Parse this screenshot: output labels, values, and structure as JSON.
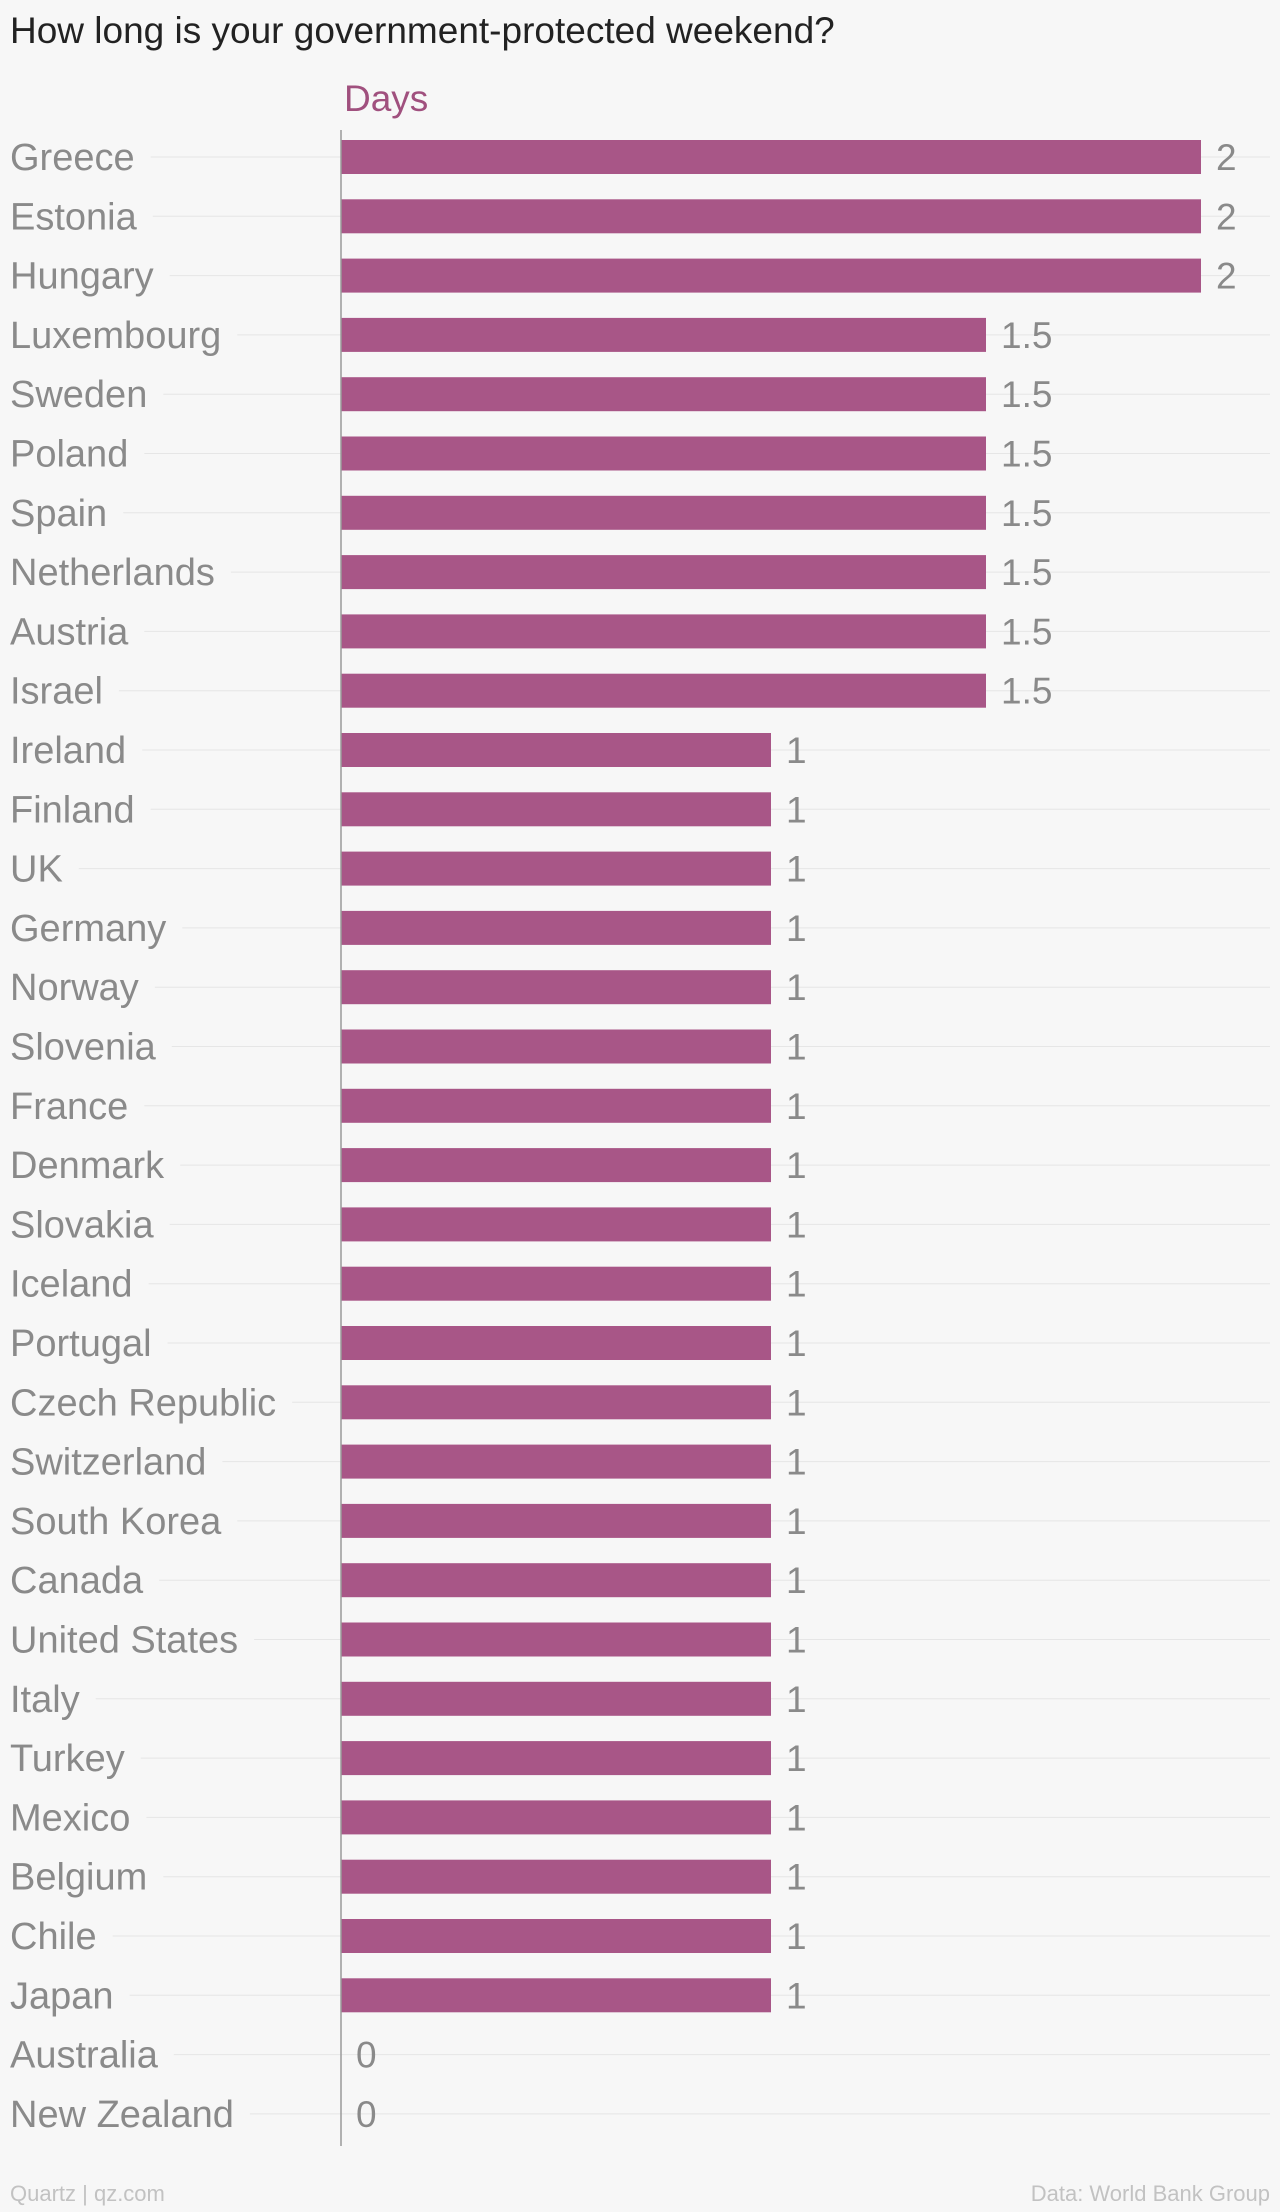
{
  "title": "How long is your government-protected weekend?",
  "footer": {
    "left": "Quartz | qz.com",
    "right": "Data: World Bank Group"
  },
  "colors": {
    "bar": "#a85687",
    "series_label": "#a0507e",
    "text": "#8a8a8a",
    "grid": "#e6e6e6",
    "axis": "#9a9a9a"
  },
  "chart_data": {
    "type": "bar",
    "orientation": "horizontal",
    "title": "How long is your government-protected weekend?",
    "series": [
      {
        "name": "Days",
        "values": [
          2,
          2,
          2,
          1.5,
          1.5,
          1.5,
          1.5,
          1.5,
          1.5,
          1.5,
          1,
          1,
          1,
          1,
          1,
          1,
          1,
          1,
          1,
          1,
          1,
          1,
          1,
          1,
          1,
          1,
          1,
          1,
          1,
          1,
          1,
          1,
          0,
          0
        ]
      }
    ],
    "categories": [
      "Greece",
      "Estonia",
      "Hungary",
      "Luxembourg",
      "Sweden",
      "Poland",
      "Spain",
      "Netherlands",
      "Austria",
      "Israel",
      "Ireland",
      "Finland",
      "UK",
      "Germany",
      "Norway",
      "Slovenia",
      "France",
      "Denmark",
      "Slovakia",
      "Iceland",
      "Portugal",
      "Czech Republic",
      "Switzerland",
      "South Korea",
      "Canada",
      "United States",
      "Italy",
      "Turkey",
      "Mexico",
      "Belgium",
      "Chile",
      "Japan",
      "Australia",
      "New Zealand"
    ],
    "value_labels": [
      "2",
      "2",
      "2",
      "1.5",
      "1.5",
      "1.5",
      "1.5",
      "1.5",
      "1.5",
      "1.5",
      "1",
      "1",
      "1",
      "1",
      "1",
      "1",
      "1",
      "1",
      "1",
      "1",
      "1",
      "1",
      "1",
      "1",
      "1",
      "1",
      "1",
      "1",
      "1",
      "1",
      "1",
      "1",
      "0",
      "0"
    ],
    "xlim": [
      0,
      2
    ],
    "grid": true,
    "legend": "top"
  }
}
